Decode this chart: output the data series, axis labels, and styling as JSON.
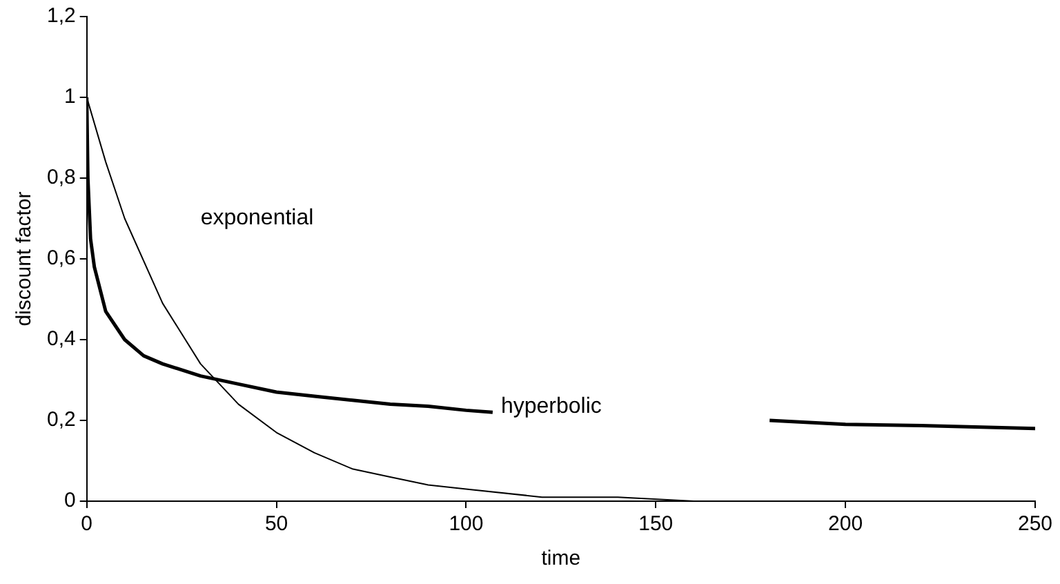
{
  "chart_data": {
    "type": "line",
    "xlabel": "time",
    "ylabel": "discount factor",
    "xlim": [
      0,
      250
    ],
    "xticks": [
      0,
      50,
      100,
      150,
      200,
      250
    ],
    "ylim": [
      0,
      1.2
    ],
    "yticks": [
      0,
      {
        "value": 0.2,
        "label": "0,2"
      },
      {
        "value": 0.4,
        "label": "0,4"
      },
      {
        "value": 0.6,
        "label": "0,6"
      },
      {
        "value": 0.8,
        "label": "0,8"
      },
      1,
      {
        "value": 1.2,
        "label": "1,2"
      }
    ],
    "grid": false,
    "legend": false,
    "marker": "none",
    "line_style": "solid",
    "series": [
      {
        "name": "exponential",
        "color": "#000000",
        "x": [
          0,
          5,
          10,
          20,
          30,
          40,
          50,
          60,
          70,
          80,
          90,
          100,
          120,
          140,
          160,
          177
        ],
        "values": [
          1,
          0.84,
          0.7,
          0.49,
          0.34,
          0.24,
          0.17,
          0.12,
          0.08,
          0.06,
          0.04,
          0.03,
          0.01,
          0.01,
          0,
          0
        ]
      },
      {
        "name": "hyperbolic",
        "color": "#000000",
        "x": [
          0,
          0.3,
          1,
          2,
          5,
          10,
          15,
          20,
          30,
          40,
          50,
          60,
          70,
          80,
          90,
          100,
          107,
          140,
          180,
          200,
          220,
          250
        ],
        "values": [
          1,
          0.8,
          0.65,
          0.58,
          0.47,
          0.4,
          0.36,
          0.34,
          0.31,
          0.29,
          0.27,
          0.26,
          0.25,
          0.24,
          0.235,
          0.225,
          0.22,
          null,
          0.2,
          0.19,
          0.187,
          0.18
        ]
      }
    ]
  }
}
